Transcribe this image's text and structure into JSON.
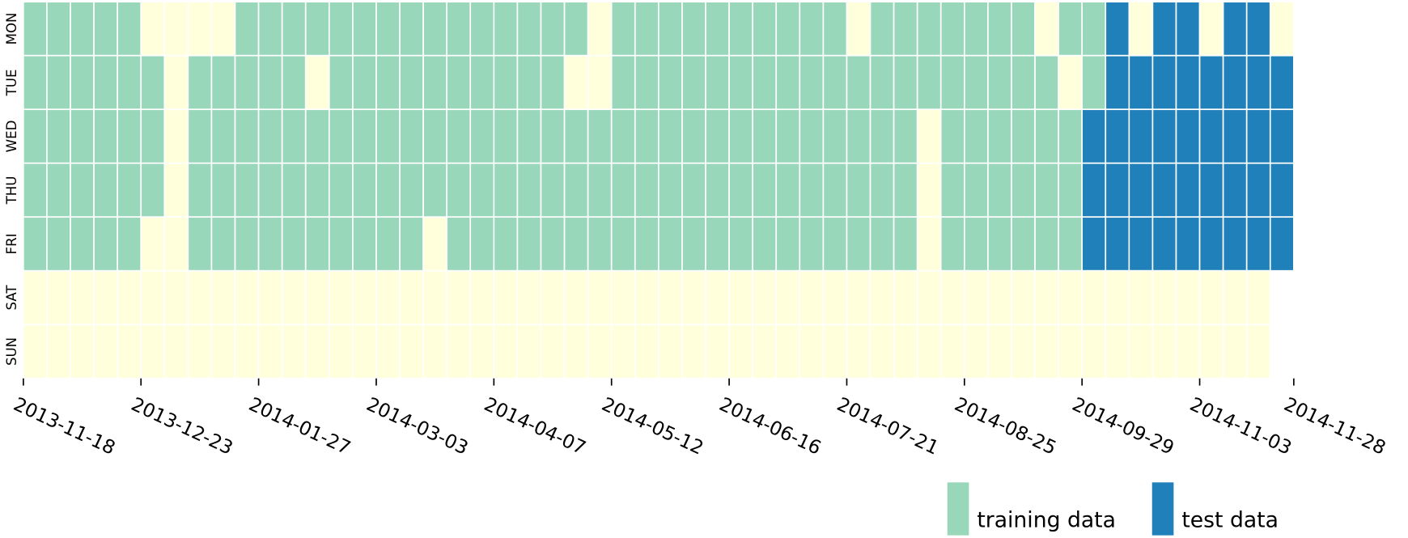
{
  "chart_data": {
    "type": "heatmap",
    "rows": [
      "MON",
      "TUE",
      "WED",
      "THU",
      "FRI",
      "SAT",
      "SUN"
    ],
    "x_tick_labels": [
      "2013-11-18",
      "2013-12-23",
      "2014-01-27",
      "2014-03-03",
      "2014-04-07",
      "2014-05-12",
      "2014-06-16",
      "2014-07-21",
      "2014-08-25",
      "2014-09-29",
      "2014-11-03",
      "2014-11-28"
    ],
    "empty_color": "#ffffdc",
    "series": [
      {
        "name": "training data",
        "color": "#99d7ba"
      },
      {
        "name": "test data",
        "color": "#2080b9"
      }
    ],
    "values": [
      [
        1,
        1,
        1,
        1,
        1,
        0,
        0,
        0,
        0,
        1,
        1,
        1,
        1,
        1,
        1,
        1,
        1,
        1,
        1,
        1,
        1,
        1,
        1,
        1,
        0,
        1,
        1,
        1,
        1,
        1,
        1,
        1,
        1,
        1,
        1,
        0,
        1,
        1,
        1,
        1,
        1,
        1,
        1,
        0,
        1,
        1,
        2,
        0,
        2,
        2,
        0,
        2,
        2,
        0
      ],
      [
        1,
        1,
        1,
        1,
        1,
        1,
        0,
        1,
        1,
        1,
        1,
        1,
        0,
        1,
        1,
        1,
        1,
        1,
        1,
        1,
        1,
        1,
        1,
        0,
        0,
        1,
        1,
        1,
        1,
        1,
        1,
        1,
        1,
        1,
        1,
        1,
        1,
        1,
        1,
        1,
        1,
        1,
        1,
        1,
        0,
        1,
        2,
        2,
        2,
        2,
        2,
        2,
        2,
        2
      ],
      [
        1,
        1,
        1,
        1,
        1,
        1,
        0,
        1,
        1,
        1,
        1,
        1,
        1,
        1,
        1,
        1,
        1,
        1,
        1,
        1,
        1,
        1,
        1,
        1,
        1,
        1,
        1,
        1,
        1,
        1,
        1,
        1,
        1,
        1,
        1,
        1,
        1,
        1,
        0,
        1,
        1,
        1,
        1,
        1,
        1,
        2,
        2,
        2,
        2,
        2,
        2,
        2,
        2,
        2
      ],
      [
        1,
        1,
        1,
        1,
        1,
        1,
        0,
        1,
        1,
        1,
        1,
        1,
        1,
        1,
        1,
        1,
        1,
        1,
        1,
        1,
        1,
        1,
        1,
        1,
        1,
        1,
        1,
        1,
        1,
        1,
        1,
        1,
        1,
        1,
        1,
        1,
        1,
        1,
        0,
        1,
        1,
        1,
        1,
        1,
        1,
        2,
        2,
        2,
        2,
        2,
        2,
        2,
        2,
        2
      ],
      [
        1,
        1,
        1,
        1,
        1,
        0,
        0,
        1,
        1,
        1,
        1,
        1,
        1,
        1,
        1,
        1,
        1,
        0,
        1,
        1,
        1,
        1,
        1,
        1,
        1,
        1,
        1,
        1,
        1,
        1,
        1,
        1,
        1,
        1,
        1,
        1,
        1,
        1,
        0,
        1,
        1,
        1,
        1,
        1,
        1,
        2,
        2,
        2,
        2,
        2,
        2,
        2,
        2,
        2
      ],
      [
        0,
        0,
        0,
        0,
        0,
        0,
        0,
        0,
        0,
        0,
        0,
        0,
        0,
        0,
        0,
        0,
        0,
        0,
        0,
        0,
        0,
        0,
        0,
        0,
        0,
        0,
        0,
        0,
        0,
        0,
        0,
        0,
        0,
        0,
        0,
        0,
        0,
        0,
        0,
        0,
        0,
        0,
        0,
        0,
        0,
        0,
        0,
        0,
        0,
        0,
        0,
        0,
        0,
        null
      ],
      [
        0,
        0,
        0,
        0,
        0,
        0,
        0,
        0,
        0,
        0,
        0,
        0,
        0,
        0,
        0,
        0,
        0,
        0,
        0,
        0,
        0,
        0,
        0,
        0,
        0,
        0,
        0,
        0,
        0,
        0,
        0,
        0,
        0,
        0,
        0,
        0,
        0,
        0,
        0,
        0,
        0,
        0,
        0,
        0,
        0,
        0,
        0,
        0,
        0,
        0,
        0,
        0,
        0,
        null
      ]
    ]
  }
}
